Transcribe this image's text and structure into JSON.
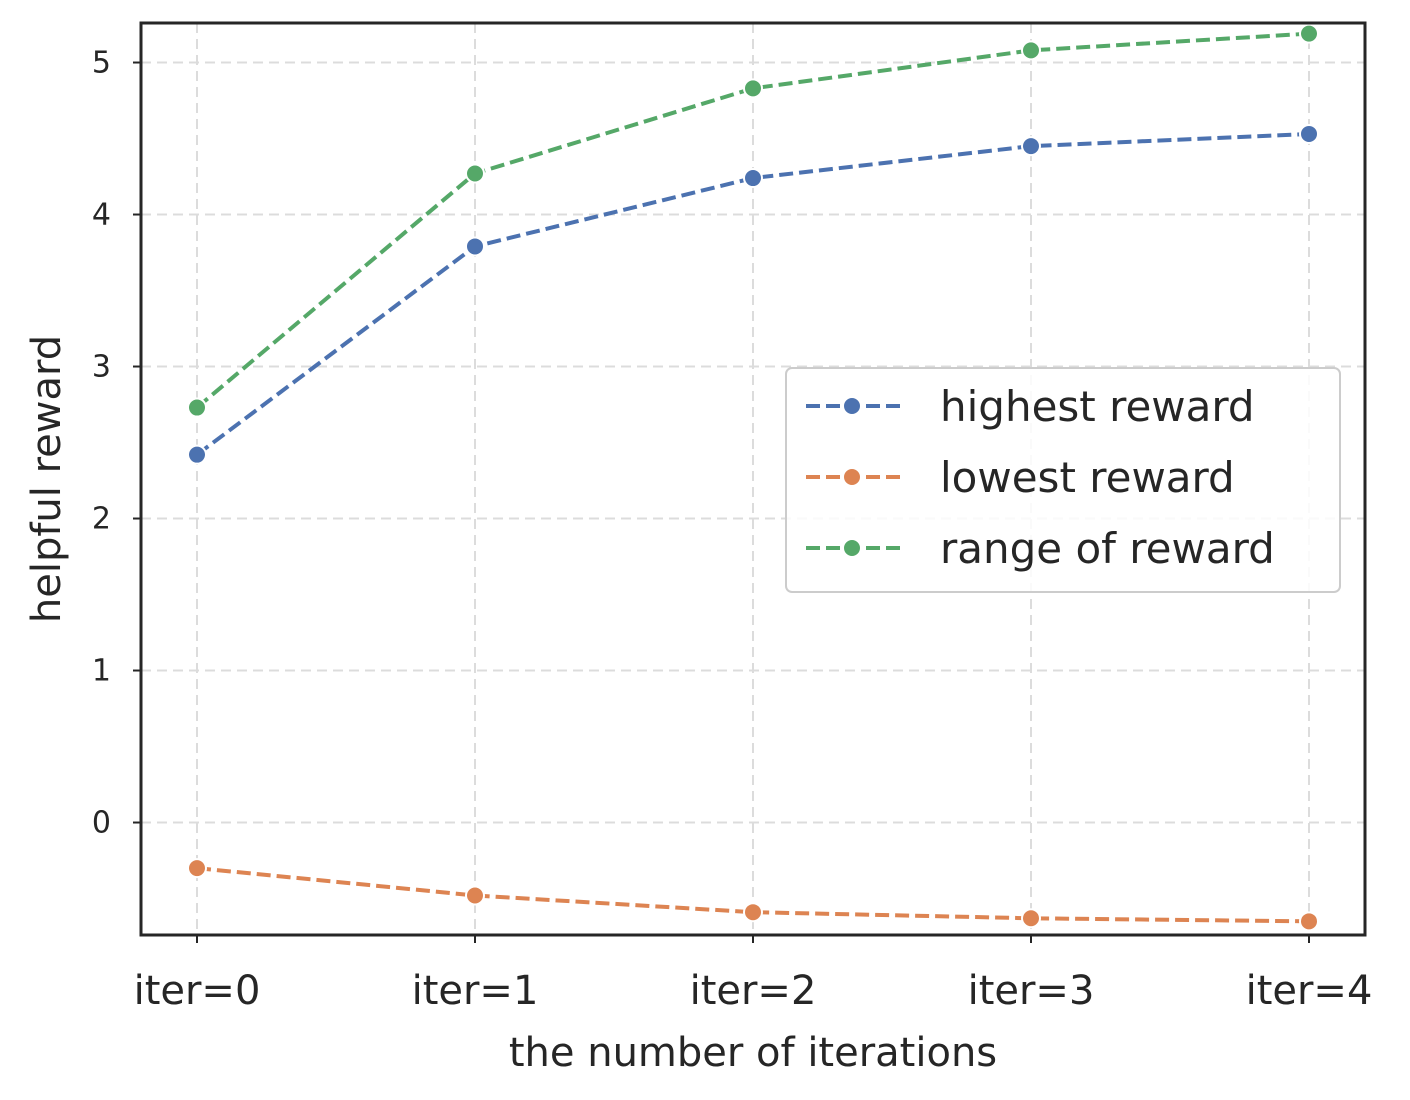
{
  "chart_data": {
    "type": "line",
    "title": "",
    "xlabel": "the number of iterations",
    "ylabel": "helpful reward",
    "categories": [
      "iter=0",
      "iter=1",
      "iter=2",
      "iter=3",
      "iter=4"
    ],
    "yticks": [
      0,
      1,
      2,
      3,
      4,
      5
    ],
    "ylim": [
      -0.74,
      5.26
    ],
    "grid": true,
    "legend_position": "right",
    "series": [
      {
        "name": "highest reward",
        "color": "#4c72b0",
        "values": [
          2.42,
          3.79,
          4.24,
          4.45,
          4.53
        ]
      },
      {
        "name": "lowest reward",
        "color": "#dd8452",
        "values": [
          -0.3,
          -0.48,
          -0.59,
          -0.63,
          -0.65
        ]
      },
      {
        "name": "range of reward",
        "color": "#55a868",
        "values": [
          2.73,
          4.27,
          4.83,
          5.08,
          5.19
        ]
      }
    ]
  }
}
